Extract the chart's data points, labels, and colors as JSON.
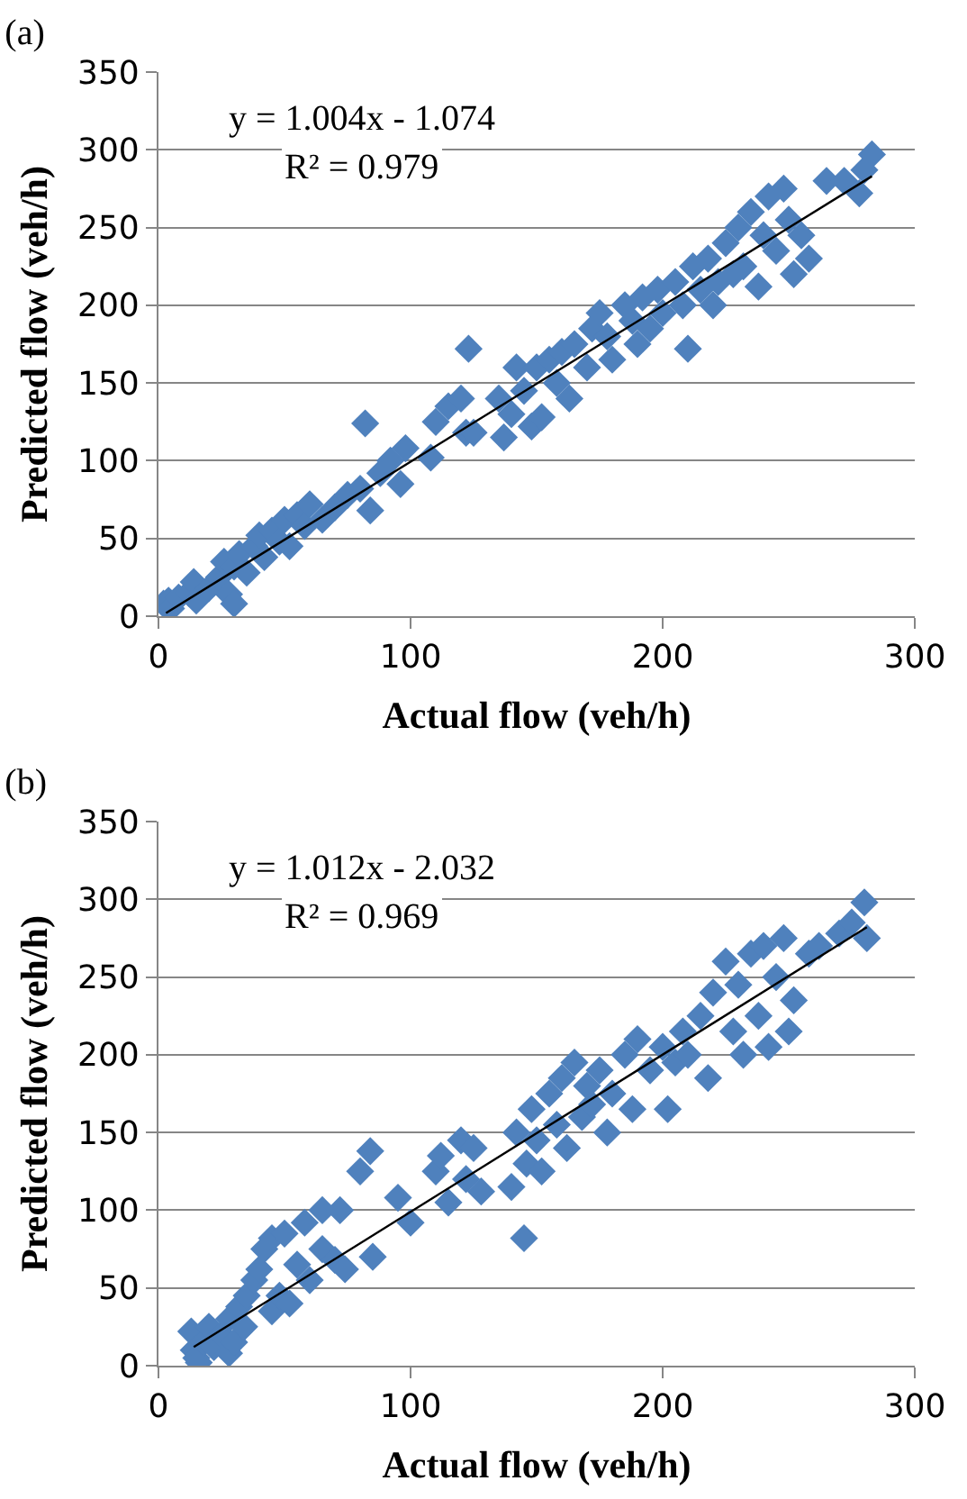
{
  "chart_data": [
    {
      "type": "scatter",
      "title": "(a)",
      "xlabel": "Actual flow (veh/h)",
      "ylabel": "Predicted flow (veh/h)",
      "xlim": [
        0,
        300
      ],
      "xticks": [
        0,
        100,
        200,
        300
      ],
      "ylim": [
        0,
        350
      ],
      "yticks": [
        0,
        50,
        100,
        150,
        200,
        250,
        300,
        350
      ],
      "grid": "y",
      "annotations": [
        "y = 1.004x - 1.074",
        "R² = 0.979"
      ],
      "series": [
        {
          "marker": "diamond",
          "color": "#4f81bd",
          "x": [
            2,
            4,
            5,
            8,
            12,
            14,
            15,
            20,
            24,
            26,
            28,
            30,
            30,
            32,
            35,
            38,
            40,
            42,
            45,
            48,
            50,
            52,
            55,
            58,
            60,
            65,
            70,
            75,
            80,
            82,
            84,
            88,
            92,
            96,
            98,
            108,
            110,
            115,
            120,
            122,
            123,
            125,
            135,
            137,
            140,
            142,
            145,
            148,
            150,
            152,
            155,
            158,
            160,
            163,
            165,
            170,
            172,
            175,
            178,
            180,
            185,
            188,
            190,
            192,
            195,
            198,
            200,
            205,
            208,
            210,
            212,
            215,
            218,
            220,
            222,
            225,
            228,
            230,
            232,
            235,
            238,
            240,
            242,
            245,
            248,
            250,
            252,
            255,
            258,
            265,
            272,
            278,
            280,
            283
          ],
          "values": [
            8,
            10,
            5,
            12,
            15,
            22,
            10,
            18,
            25,
            35,
            14,
            8,
            32,
            40,
            28,
            45,
            52,
            38,
            55,
            48,
            62,
            45,
            65,
            58,
            72,
            62,
            70,
            78,
            82,
            124,
            68,
            92,
            100,
            85,
            108,
            102,
            125,
            135,
            140,
            118,
            172,
            118,
            140,
            115,
            130,
            160,
            145,
            122,
            160,
            128,
            165,
            150,
            170,
            140,
            175,
            160,
            185,
            195,
            180,
            165,
            200,
            190,
            175,
            205,
            185,
            210,
            195,
            215,
            200,
            172,
            225,
            210,
            230,
            200,
            215,
            240,
            220,
            250,
            225,
            260,
            212,
            245,
            270,
            235,
            275,
            255,
            220,
            245,
            230,
            280,
            280,
            272,
            287,
            297
          ]
        },
        {
          "type": "line",
          "marker": "none",
          "color": "#000000",
          "x": [
            3,
            283
          ],
          "values": [
            2,
            283
          ]
        }
      ]
    },
    {
      "type": "scatter",
      "title": "(b)",
      "xlabel": "Actual flow (veh/h)",
      "ylabel": "Predicted flow (veh/h)",
      "xlim": [
        0,
        300
      ],
      "xticks": [
        0,
        100,
        200,
        300
      ],
      "ylim": [
        0,
        350
      ],
      "yticks": [
        0,
        50,
        100,
        150,
        200,
        250,
        300,
        350
      ],
      "grid": "y",
      "annotations": [
        "y = 1.012x - 2.032",
        "R² = 0.969"
      ],
      "series": [
        {
          "marker": "diamond",
          "color": "#4f81bd",
          "x": [
            13,
            14,
            15,
            16,
            18,
            20,
            22,
            25,
            28,
            28,
            30,
            32,
            34,
            35,
            38,
            40,
            42,
            45,
            45,
            48,
            50,
            52,
            55,
            58,
            60,
            65,
            65,
            70,
            72,
            74,
            80,
            84,
            85,
            95,
            100,
            110,
            112,
            115,
            120,
            122,
            125,
            128,
            140,
            142,
            145,
            146,
            148,
            150,
            152,
            155,
            158,
            160,
            162,
            165,
            168,
            170,
            172,
            175,
            178,
            180,
            185,
            188,
            190,
            195,
            200,
            202,
            205,
            208,
            210,
            215,
            218,
            220,
            225,
            228,
            230,
            232,
            235,
            238,
            240,
            242,
            245,
            248,
            250,
            252,
            258,
            262,
            270,
            275,
            280,
            281
          ],
          "values": [
            22,
            10,
            5,
            2,
            15,
            25,
            12,
            20,
            8,
            30,
            15,
            38,
            25,
            45,
            55,
            62,
            75,
            82,
            35,
            45,
            85,
            40,
            65,
            92,
            55,
            100,
            75,
            68,
            100,
            62,
            125,
            138,
            70,
            108,
            92,
            125,
            135,
            105,
            145,
            120,
            140,
            112,
            115,
            150,
            82,
            130,
            165,
            145,
            125,
            175,
            155,
            185,
            140,
            195,
            160,
            180,
            168,
            190,
            150,
            175,
            200,
            165,
            210,
            190,
            205,
            165,
            195,
            215,
            200,
            225,
            185,
            240,
            260,
            215,
            245,
            200,
            265,
            225,
            270,
            205,
            250,
            275,
            215,
            235,
            265,
            270,
            278,
            285,
            298,
            275
          ]
        },
        {
          "type": "line",
          "marker": "none",
          "color": "#000000",
          "x": [
            14,
            281
          ],
          "values": [
            12,
            282
          ]
        }
      ]
    }
  ]
}
